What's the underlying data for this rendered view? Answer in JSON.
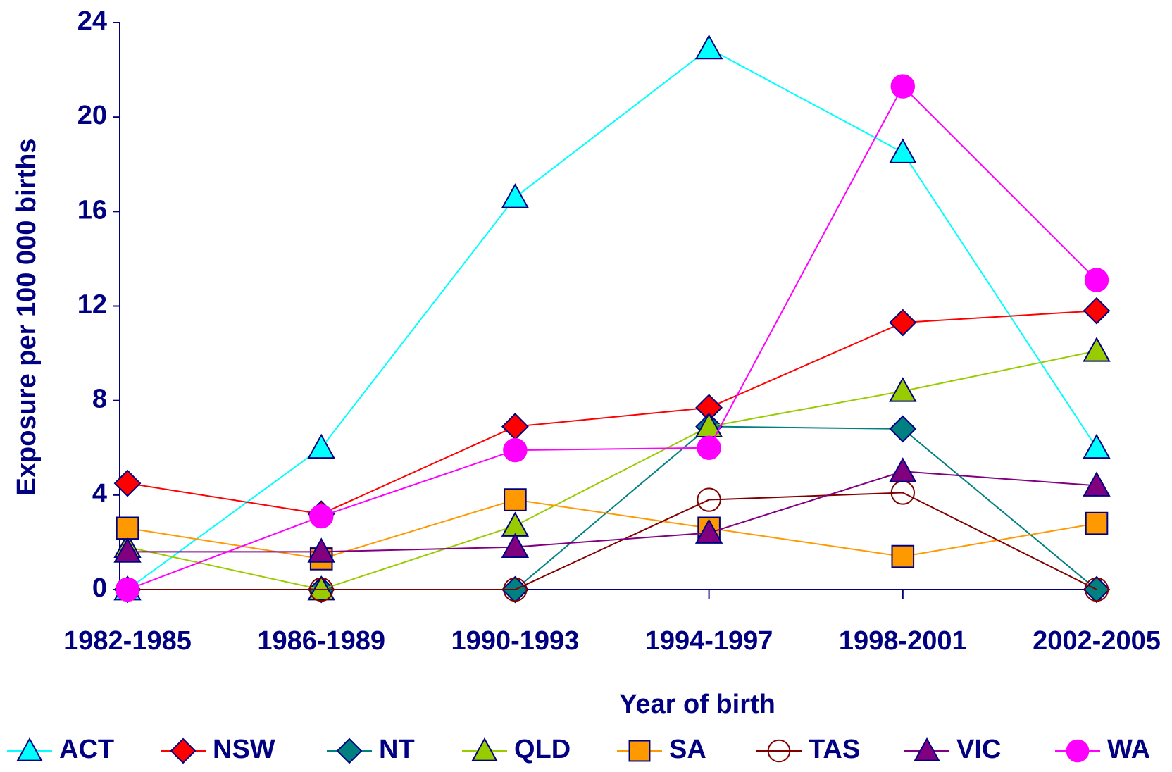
{
  "chart_data": {
    "type": "line",
    "x_label": "Year of birth",
    "y_label": "Exposure per 100 000 births",
    "categories": [
      "1982-1985",
      "1986-1989",
      "1990-1993",
      "1994-1997",
      "1998-2001",
      "2002-2005"
    ],
    "ylim": [
      0,
      24
    ],
    "yticks": [
      0,
      4,
      8,
      12,
      16,
      20,
      24
    ],
    "legend": "bottom",
    "series": [
      {
        "name": "ACT",
        "color": "#00ffff",
        "marker": "triangle",
        "marker_fill": "#00ffff",
        "values": [
          0,
          6,
          16.6,
          22.9,
          18.5,
          6
        ]
      },
      {
        "name": "NSW",
        "color": "#ff0000",
        "marker": "diamond",
        "marker_fill": "#ff0000",
        "values": [
          4.5,
          3.2,
          6.9,
          7.7,
          11.3,
          11.8
        ]
      },
      {
        "name": "NT",
        "color": "#008080",
        "marker": "diamond",
        "marker_fill": "#008080",
        "values": [
          0,
          0,
          0,
          6.9,
          6.8,
          0
        ]
      },
      {
        "name": "QLD",
        "color": "#99cc00",
        "marker": "triangle",
        "marker_fill": "#99cc00",
        "values": [
          1.8,
          0,
          2.7,
          6.9,
          8.4,
          10.1
        ]
      },
      {
        "name": "SA",
        "color": "#ff9900",
        "marker": "square",
        "marker_fill": "#ff9900",
        "values": [
          2.6,
          1.3,
          3.8,
          2.6,
          1.4,
          2.8
        ]
      },
      {
        "name": "TAS",
        "color": "#800000",
        "marker": "circle",
        "marker_fill": "none",
        "values": [
          0,
          0,
          0,
          3.8,
          4.1,
          0
        ]
      },
      {
        "name": "VIC",
        "color": "#800080",
        "marker": "triangle",
        "marker_fill": "#800080",
        "values": [
          1.6,
          1.6,
          1.8,
          2.4,
          5.0,
          4.4
        ]
      },
      {
        "name": "WA",
        "color": "#ff00ff",
        "marker": "circle",
        "marker_fill": "#ff00ff",
        "values": [
          0,
          3.1,
          5.9,
          6.0,
          21.3,
          13.1
        ]
      }
    ]
  }
}
